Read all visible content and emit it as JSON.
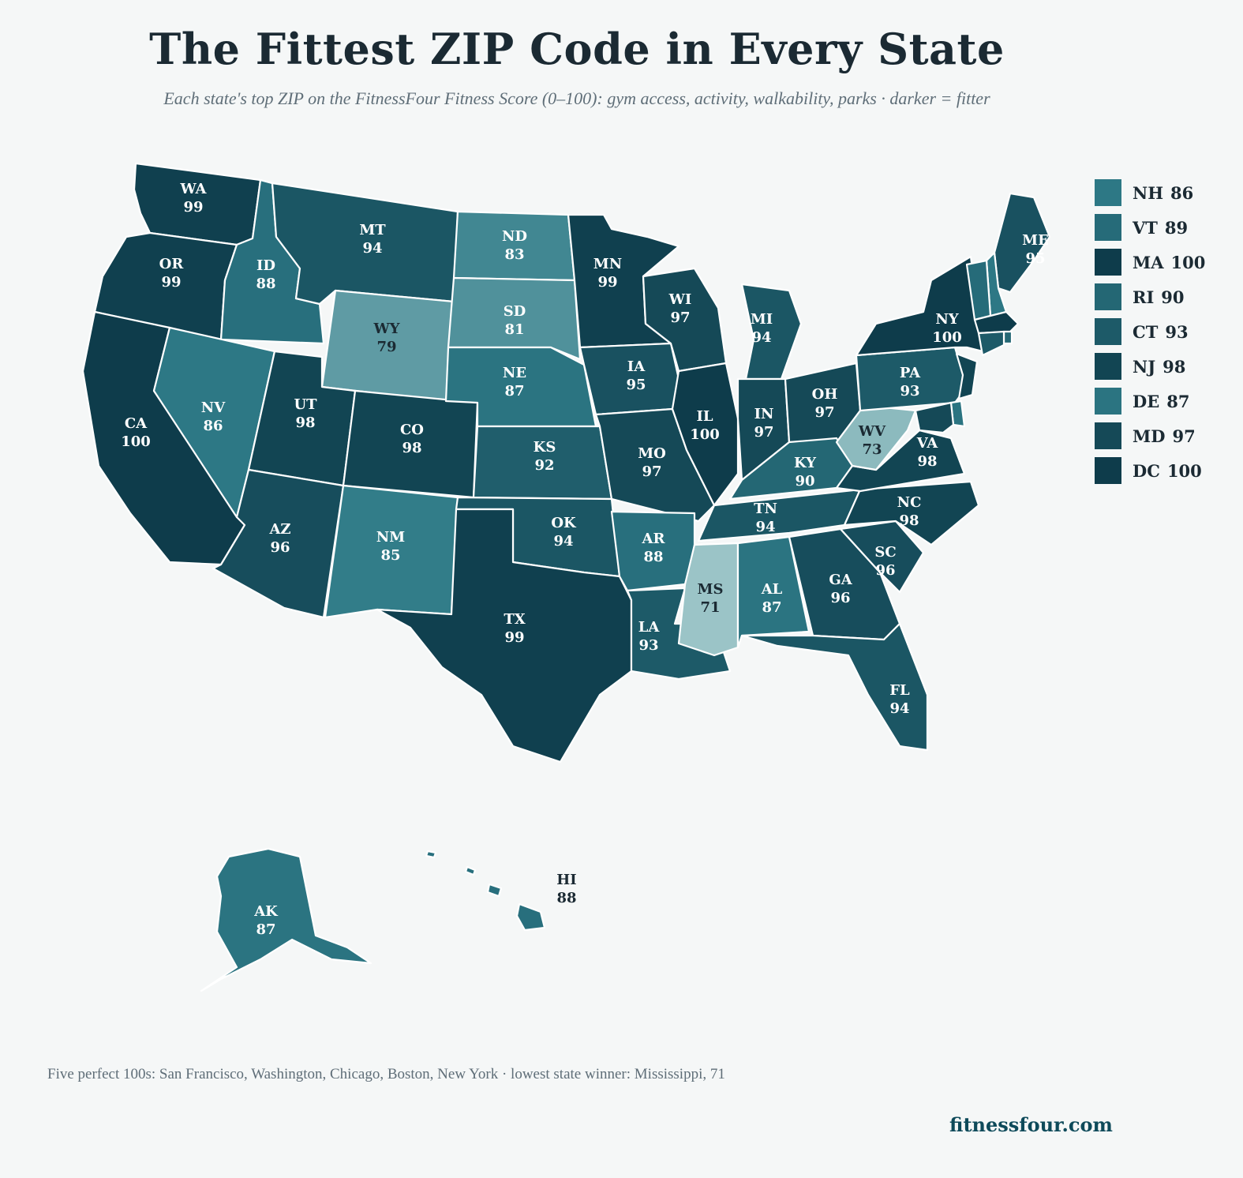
{
  "title": "The Fittest ZIP Code in Every State",
  "subtitle": "Each state's top ZIP on the FitnessFour Fitness Score (0–100): gym access, activity, walkability, parks · darker = fitter",
  "footnote": "Five perfect 100s: San Francisco, Washington, Chicago, Boston, New York · lowest state winner: Mississippi, 71",
  "brand": "fitnessfour.com",
  "color_scale": {
    "low": "#9bc4c7",
    "mid": "#2e7a87",
    "high": "#0e3c4b",
    "min": 71,
    "max": 100
  },
  "states": [
    {
      "abbr": "WA",
      "score": "99"
    },
    {
      "abbr": "OR",
      "score": "99"
    },
    {
      "abbr": "CA",
      "score": "100"
    },
    {
      "abbr": "ID",
      "score": "88"
    },
    {
      "abbr": "NV",
      "score": "86"
    },
    {
      "abbr": "MT",
      "score": "94"
    },
    {
      "abbr": "WY",
      "score": "79"
    },
    {
      "abbr": "UT",
      "score": "98"
    },
    {
      "abbr": "AZ",
      "score": "96"
    },
    {
      "abbr": "CO",
      "score": "98"
    },
    {
      "abbr": "NM",
      "score": "85"
    },
    {
      "abbr": "ND",
      "score": "83"
    },
    {
      "abbr": "SD",
      "score": "81"
    },
    {
      "abbr": "NE",
      "score": "87"
    },
    {
      "abbr": "KS",
      "score": "92"
    },
    {
      "abbr": "OK",
      "score": "94"
    },
    {
      "abbr": "TX",
      "score": "99"
    },
    {
      "abbr": "MN",
      "score": "99"
    },
    {
      "abbr": "IA",
      "score": "95"
    },
    {
      "abbr": "MO",
      "score": "97"
    },
    {
      "abbr": "AR",
      "score": "88"
    },
    {
      "abbr": "LA",
      "score": "93"
    },
    {
      "abbr": "WI",
      "score": "97"
    },
    {
      "abbr": "IL",
      "score": "100"
    },
    {
      "abbr": "MI",
      "score": "94"
    },
    {
      "abbr": "IN",
      "score": "97"
    },
    {
      "abbr": "OH",
      "score": "97"
    },
    {
      "abbr": "KY",
      "score": "90"
    },
    {
      "abbr": "TN",
      "score": "94"
    },
    {
      "abbr": "MS",
      "score": "71"
    },
    {
      "abbr": "AL",
      "score": "87"
    },
    {
      "abbr": "GA",
      "score": "96"
    },
    {
      "abbr": "FL",
      "score": "94"
    },
    {
      "abbr": "SC",
      "score": "96"
    },
    {
      "abbr": "NC",
      "score": "98"
    },
    {
      "abbr": "VA",
      "score": "98"
    },
    {
      "abbr": "WV",
      "score": "73"
    },
    {
      "abbr": "PA",
      "score": "93"
    },
    {
      "abbr": "NY",
      "score": "100"
    },
    {
      "abbr": "ME",
      "score": "95"
    },
    {
      "abbr": "AK",
      "score": "87"
    },
    {
      "abbr": "HI",
      "score": "88"
    },
    {
      "abbr": "NH",
      "score": "86"
    },
    {
      "abbr": "VT",
      "score": "89"
    },
    {
      "abbr": "MA",
      "score": "100"
    },
    {
      "abbr": "RI",
      "score": "90"
    },
    {
      "abbr": "CT",
      "score": "93"
    },
    {
      "abbr": "NJ",
      "score": "98"
    },
    {
      "abbr": "DE",
      "score": "87"
    },
    {
      "abbr": "MD",
      "score": "97"
    }
  ],
  "legend": [
    {
      "abbr": "NH",
      "score": "86"
    },
    {
      "abbr": "VT",
      "score": "89"
    },
    {
      "abbr": "MA",
      "score": "100"
    },
    {
      "abbr": "RI",
      "score": "90"
    },
    {
      "abbr": "CT",
      "score": "93"
    },
    {
      "abbr": "NJ",
      "score": "98"
    },
    {
      "abbr": "DE",
      "score": "87"
    },
    {
      "abbr": "MD",
      "score": "97"
    },
    {
      "abbr": "DC",
      "score": "100"
    }
  ]
}
